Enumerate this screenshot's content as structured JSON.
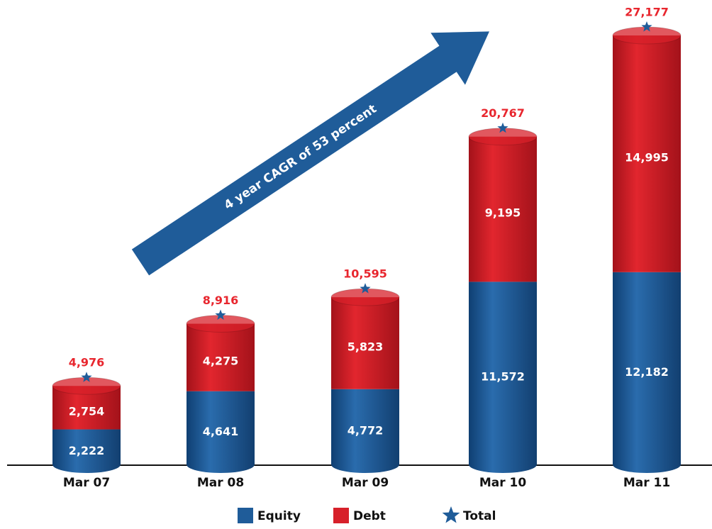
{
  "chart_data": {
    "type": "bar",
    "stacked": true,
    "annotation": "4 year CAGR of 53 percent",
    "categories": [
      "Mar 07",
      "Mar 08",
      "Mar 09",
      "Mar 10",
      "Mar 11"
    ],
    "series": [
      {
        "name": "Equity",
        "color": "#1f5c99",
        "values": [
          2222,
          4641,
          4772,
          11572,
          12182
        ],
        "value_labels": [
          "2,222",
          "4,641",
          "4,772",
          "11,572",
          "12,182"
        ]
      },
      {
        "name": "Debt",
        "color": "#d7202a",
        "values": [
          2754,
          4275,
          5823,
          9195,
          14995
        ],
        "value_labels": [
          "2,754",
          "4,275",
          "5,823",
          "9,195",
          "14,995"
        ]
      },
      {
        "name": "Total",
        "color": "#1f5c99",
        "marker": "star",
        "label_color": "#e8262e",
        "values": [
          4976,
          8916,
          10595,
          20767,
          27177
        ],
        "value_labels": [
          "4,976",
          "8,916",
          "10,595",
          "20,767",
          "27,177"
        ]
      }
    ]
  }
}
